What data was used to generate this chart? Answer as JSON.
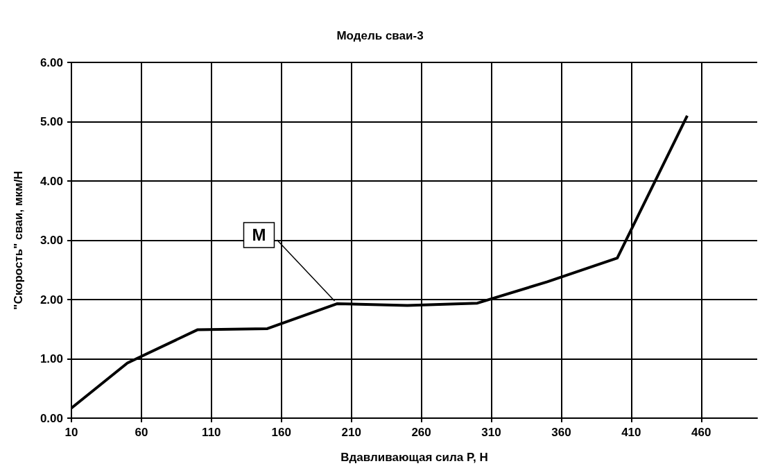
{
  "chart_data": {
    "type": "line",
    "title": "Модель сваи-3",
    "xlabel": "Вдавливающая сила P, Н",
    "ylabel": "\"Скорость\" сваи, мкм/Н",
    "x": [
      10,
      50,
      100,
      150,
      200,
      250,
      300,
      350,
      400,
      450
    ],
    "series": [
      {
        "color": "#000000",
        "values": [
          0.17,
          0.93,
          1.49,
          1.51,
          1.93,
          1.9,
          1.94,
          2.3,
          2.7,
          5.1
        ]
      }
    ],
    "xlim": [
      10,
      500
    ],
    "xticks": [
      10,
      60,
      110,
      160,
      210,
      260,
      310,
      360,
      410,
      460
    ],
    "ylim": [
      0,
      6
    ],
    "yticks": [
      {
        "value": 0,
        "label": "0.00"
      },
      {
        "value": 1,
        "label": "1.00"
      },
      {
        "value": 2,
        "label": "2.00"
      },
      {
        "value": 3,
        "label": "3.00"
      },
      {
        "value": 4,
        "label": "4.00"
      },
      {
        "value": 5,
        "label": "5.00"
      },
      {
        "value": 6,
        "label": "6.00"
      }
    ],
    "grid": true,
    "marker": "none",
    "line_style": "solid",
    "annotations": [
      {
        "text": "M",
        "x": 200,
        "y": 1.93
      }
    ]
  }
}
